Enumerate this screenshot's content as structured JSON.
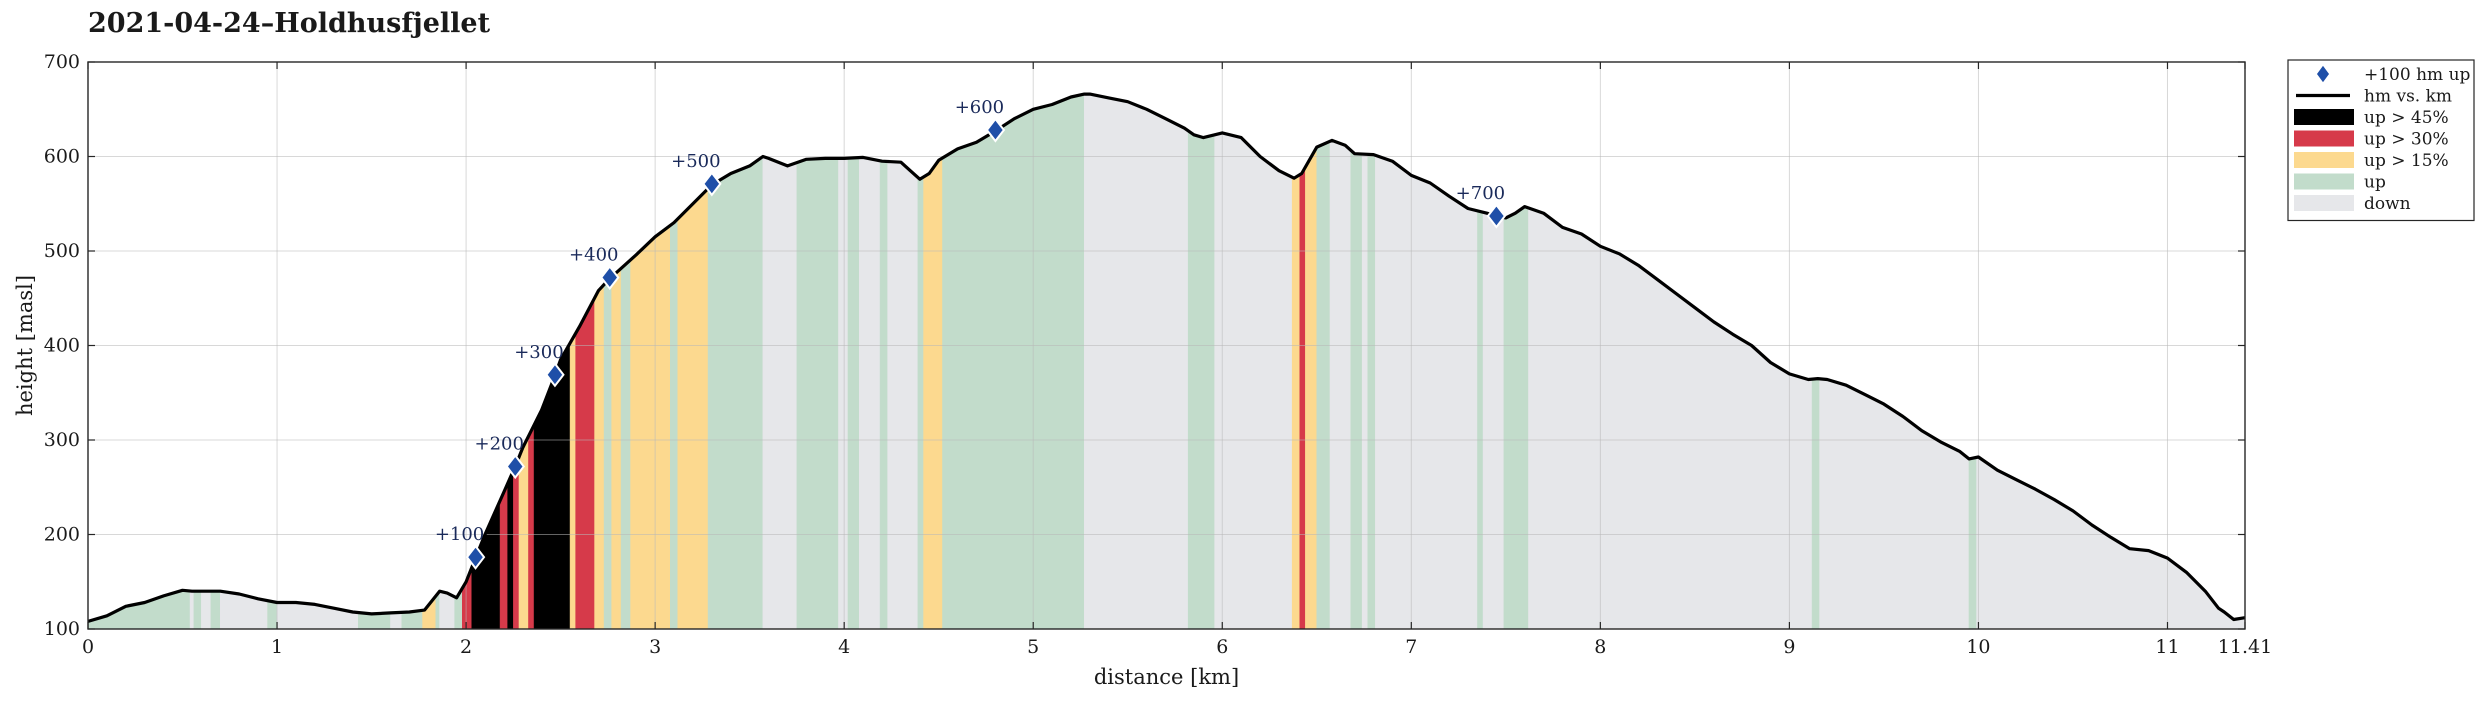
{
  "chart_data": {
    "type": "area",
    "title": "2021-04-24–Holdhusfjellet",
    "xlabel": "distance [km]",
    "ylabel": "height [masl]",
    "xlim": [
      0,
      11.41
    ],
    "ylim": [
      100,
      700
    ],
    "x_ticks": [
      0,
      1,
      2,
      3,
      4,
      5,
      6,
      7,
      8,
      9,
      10,
      11,
      11.41
    ],
    "x_tick_labels": [
      "0",
      "1",
      "2",
      "3",
      "4",
      "5",
      "6",
      "7",
      "8",
      "9",
      "10",
      "11",
      "11.41"
    ],
    "y_ticks": [
      100,
      200,
      300,
      400,
      500,
      600,
      700
    ],
    "grid": true,
    "legend_position": "outside-right-top",
    "legend": [
      {
        "key": "marker",
        "label": "+100 hm up"
      },
      {
        "key": "line",
        "label": "hm vs. km"
      },
      {
        "key": "up45",
        "label": "up > 45%"
      },
      {
        "key": "up30",
        "label": "up > 30%"
      },
      {
        "key": "up15",
        "label": "up > 15%"
      },
      {
        "key": "up",
        "label": "up"
      },
      {
        "key": "down",
        "label": "down"
      }
    ],
    "colors": {
      "up45": "#000000",
      "up30": "#d63a4a",
      "up15": "#fcd98f",
      "up": "#c2dccb",
      "down": "#e6e7ea",
      "line": "#000000",
      "marker": "#1f4fa8"
    },
    "profile": [
      [
        0.0,
        108
      ],
      [
        0.1,
        114
      ],
      [
        0.2,
        124
      ],
      [
        0.3,
        128
      ],
      [
        0.4,
        135
      ],
      [
        0.5,
        141
      ],
      [
        0.55,
        140
      ],
      [
        0.6,
        140
      ],
      [
        0.7,
        140
      ],
      [
        0.8,
        137
      ],
      [
        0.9,
        132
      ],
      [
        1.0,
        128
      ],
      [
        1.1,
        128
      ],
      [
        1.2,
        126
      ],
      [
        1.3,
        122
      ],
      [
        1.4,
        118
      ],
      [
        1.5,
        116
      ],
      [
        1.6,
        117
      ],
      [
        1.7,
        118
      ],
      [
        1.78,
        120
      ],
      [
        1.82,
        130
      ],
      [
        1.86,
        140
      ],
      [
        1.9,
        138
      ],
      [
        1.95,
        133
      ],
      [
        2.0,
        150
      ],
      [
        2.05,
        175
      ],
      [
        2.1,
        200
      ],
      [
        2.2,
        245
      ],
      [
        2.26,
        272
      ],
      [
        2.3,
        292
      ],
      [
        2.4,
        332
      ],
      [
        2.47,
        368
      ],
      [
        2.5,
        385
      ],
      [
        2.6,
        420
      ],
      [
        2.7,
        458
      ],
      [
        2.76,
        471
      ],
      [
        2.8,
        478
      ],
      [
        2.9,
        496
      ],
      [
        3.0,
        515
      ],
      [
        3.1,
        530
      ],
      [
        3.2,
        550
      ],
      [
        3.3,
        570
      ],
      [
        3.4,
        582
      ],
      [
        3.5,
        590
      ],
      [
        3.57,
        600
      ],
      [
        3.6,
        598
      ],
      [
        3.7,
        590
      ],
      [
        3.8,
        597
      ],
      [
        3.9,
        598
      ],
      [
        4.0,
        598
      ],
      [
        4.1,
        599
      ],
      [
        4.2,
        595
      ],
      [
        4.3,
        594
      ],
      [
        4.35,
        585
      ],
      [
        4.4,
        576
      ],
      [
        4.45,
        582
      ],
      [
        4.5,
        596
      ],
      [
        4.6,
        608
      ],
      [
        4.7,
        615
      ],
      [
        4.8,
        627
      ],
      [
        4.9,
        640
      ],
      [
        5.0,
        650
      ],
      [
        5.1,
        655
      ],
      [
        5.2,
        663
      ],
      [
        5.27,
        666
      ],
      [
        5.3,
        666
      ],
      [
        5.4,
        662
      ],
      [
        5.5,
        658
      ],
      [
        5.6,
        650
      ],
      [
        5.7,
        640
      ],
      [
        5.8,
        630
      ],
      [
        5.85,
        623
      ],
      [
        5.9,
        620
      ],
      [
        6.0,
        625
      ],
      [
        6.1,
        620
      ],
      [
        6.2,
        600
      ],
      [
        6.3,
        585
      ],
      [
        6.38,
        577
      ],
      [
        6.42,
        582
      ],
      [
        6.5,
        610
      ],
      [
        6.58,
        617
      ],
      [
        6.65,
        612
      ],
      [
        6.7,
        603
      ],
      [
        6.8,
        602
      ],
      [
        6.9,
        595
      ],
      [
        7.0,
        580
      ],
      [
        7.1,
        572
      ],
      [
        7.2,
        558
      ],
      [
        7.3,
        545
      ],
      [
        7.4,
        540
      ],
      [
        7.45,
        537
      ],
      [
        7.5,
        535
      ],
      [
        7.55,
        540
      ],
      [
        7.6,
        547
      ],
      [
        7.7,
        540
      ],
      [
        7.8,
        525
      ],
      [
        7.9,
        518
      ],
      [
        8.0,
        505
      ],
      [
        8.1,
        497
      ],
      [
        8.2,
        485
      ],
      [
        8.3,
        470
      ],
      [
        8.4,
        455
      ],
      [
        8.5,
        440
      ],
      [
        8.6,
        425
      ],
      [
        8.7,
        412
      ],
      [
        8.8,
        400
      ],
      [
        8.9,
        382
      ],
      [
        9.0,
        370
      ],
      [
        9.1,
        364
      ],
      [
        9.15,
        365
      ],
      [
        9.2,
        364
      ],
      [
        9.3,
        358
      ],
      [
        9.4,
        348
      ],
      [
        9.5,
        338
      ],
      [
        9.6,
        325
      ],
      [
        9.7,
        310
      ],
      [
        9.8,
        298
      ],
      [
        9.9,
        288
      ],
      [
        9.95,
        280
      ],
      [
        10.0,
        282
      ],
      [
        10.1,
        268
      ],
      [
        10.2,
        258
      ],
      [
        10.3,
        248
      ],
      [
        10.4,
        237
      ],
      [
        10.5,
        225
      ],
      [
        10.6,
        210
      ],
      [
        10.7,
        197
      ],
      [
        10.8,
        185
      ],
      [
        10.9,
        183
      ],
      [
        11.0,
        175
      ],
      [
        11.1,
        160
      ],
      [
        11.2,
        140
      ],
      [
        11.27,
        122
      ],
      [
        11.3,
        118
      ],
      [
        11.35,
        110
      ],
      [
        11.41,
        112
      ]
    ],
    "segments": [
      [
        0.0,
        0.54,
        "up"
      ],
      [
        0.54,
        0.56,
        "down"
      ],
      [
        0.56,
        0.6,
        "up"
      ],
      [
        0.6,
        0.65,
        "down"
      ],
      [
        0.65,
        0.7,
        "up"
      ],
      [
        0.7,
        0.95,
        "down"
      ],
      [
        0.95,
        1.0,
        "up"
      ],
      [
        1.0,
        1.43,
        "down"
      ],
      [
        1.43,
        1.6,
        "up"
      ],
      [
        1.6,
        1.66,
        "down"
      ],
      [
        1.66,
        1.77,
        "up"
      ],
      [
        1.77,
        1.84,
        "up15"
      ],
      [
        1.84,
        1.86,
        "up"
      ],
      [
        1.86,
        1.94,
        "down"
      ],
      [
        1.94,
        1.98,
        "up"
      ],
      [
        1.98,
        2.03,
        "up30"
      ],
      [
        2.03,
        2.18,
        "up45"
      ],
      [
        2.18,
        2.22,
        "up30"
      ],
      [
        2.22,
        2.25,
        "up45"
      ],
      [
        2.25,
        2.28,
        "up30"
      ],
      [
        2.28,
        2.33,
        "up15"
      ],
      [
        2.33,
        2.36,
        "up30"
      ],
      [
        2.36,
        2.55,
        "up45"
      ],
      [
        2.55,
        2.58,
        "up15"
      ],
      [
        2.58,
        2.68,
        "up30"
      ],
      [
        2.68,
        2.73,
        "up15"
      ],
      [
        2.73,
        2.77,
        "up"
      ],
      [
        2.77,
        2.82,
        "up15"
      ],
      [
        2.82,
        2.87,
        "up"
      ],
      [
        2.87,
        3.08,
        "up15"
      ],
      [
        3.08,
        3.12,
        "up"
      ],
      [
        3.12,
        3.28,
        "up15"
      ],
      [
        3.28,
        3.57,
        "up"
      ],
      [
        3.57,
        3.75,
        "down"
      ],
      [
        3.75,
        3.97,
        "up"
      ],
      [
        3.97,
        4.02,
        "down"
      ],
      [
        4.02,
        4.08,
        "up"
      ],
      [
        4.08,
        4.19,
        "down"
      ],
      [
        4.19,
        4.23,
        "up"
      ],
      [
        4.23,
        4.39,
        "down"
      ],
      [
        4.39,
        4.42,
        "up"
      ],
      [
        4.42,
        4.52,
        "up15"
      ],
      [
        4.52,
        5.27,
        "up"
      ],
      [
        5.27,
        5.82,
        "down"
      ],
      [
        5.82,
        5.96,
        "up"
      ],
      [
        5.96,
        6.37,
        "down"
      ],
      [
        6.37,
        6.41,
        "up15"
      ],
      [
        6.41,
        6.44,
        "up30"
      ],
      [
        6.44,
        6.5,
        "up15"
      ],
      [
        6.5,
        6.57,
        "up"
      ],
      [
        6.57,
        6.68,
        "down"
      ],
      [
        6.68,
        6.74,
        "up"
      ],
      [
        6.74,
        6.77,
        "down"
      ],
      [
        6.77,
        6.81,
        "up"
      ],
      [
        6.81,
        7.35,
        "down"
      ],
      [
        7.35,
        7.38,
        "up"
      ],
      [
        7.38,
        7.49,
        "down"
      ],
      [
        7.49,
        7.62,
        "up"
      ],
      [
        7.62,
        9.12,
        "down"
      ],
      [
        9.12,
        9.16,
        "up"
      ],
      [
        9.16,
        9.95,
        "down"
      ],
      [
        9.95,
        9.99,
        "up"
      ],
      [
        9.99,
        11.41,
        "down"
      ]
    ],
    "markers": [
      {
        "x": 2.05,
        "y": 176,
        "label": "+100"
      },
      {
        "x": 2.26,
        "y": 272,
        "label": "+200"
      },
      {
        "x": 2.47,
        "y": 369,
        "label": "+300"
      },
      {
        "x": 2.76,
        "y": 472,
        "label": "+400"
      },
      {
        "x": 3.3,
        "y": 571,
        "label": "+500"
      },
      {
        "x": 4.8,
        "y": 628,
        "label": "+600"
      },
      {
        "x": 7.45,
        "y": 537,
        "label": "+700"
      }
    ]
  }
}
